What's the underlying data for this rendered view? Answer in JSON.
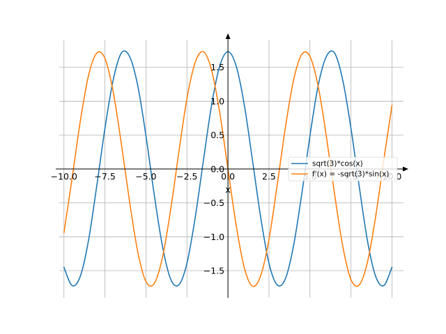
{
  "chart_data": {
    "type": "line",
    "title": "",
    "xlabel": "x",
    "ylabel": "",
    "xlim": [
      -10.5,
      11.0
    ],
    "ylim": [
      -1.9,
      2.0
    ],
    "grid": true,
    "legend_position": "center-right",
    "x_ticks": [
      -10.0,
      -7.5,
      -5.0,
      -2.5,
      0.0,
      2.5,
      5.0,
      7.5,
      10.0
    ],
    "x_tick_labels": [
      "−10.0",
      "−7.5",
      "−5.0",
      "−2.5",
      "0.0",
      "2.5",
      "5.0",
      "7.5",
      "10.0"
    ],
    "y_ticks": [
      -1.5,
      -1.0,
      -0.5,
      0.0,
      0.5,
      1.0,
      1.5
    ],
    "y_tick_labels": [
      "−1.5",
      "−1.0",
      "−0.5",
      "0.0",
      "0.5",
      "1.0",
      "1.5"
    ],
    "series": [
      {
        "name": "sqrt(3)*cos(x)",
        "color": "#1f77b4",
        "x": [
          -10,
          -9.5,
          -9,
          -8.5,
          -8,
          -7.5,
          -7,
          -6.5,
          -6,
          -5.5,
          -5,
          -4.5,
          -4,
          -3.5,
          -3,
          -2.5,
          -2,
          -1.5,
          -1,
          -0.5,
          0,
          0.5,
          1,
          1.5,
          2,
          2.5,
          3,
          3.5,
          4,
          4.5,
          5,
          5.5,
          6,
          6.5,
          7,
          7.5,
          8,
          8.5,
          9,
          9.5,
          10
        ],
        "y": [
          -1.45,
          -1.72,
          -1.58,
          -1.05,
          -0.25,
          0.6,
          1.31,
          1.71,
          1.66,
          1.23,
          0.49,
          -0.37,
          -1.13,
          -1.62,
          -1.71,
          -1.39,
          -0.72,
          0.12,
          0.94,
          1.52,
          1.73,
          1.52,
          0.94,
          0.12,
          -0.72,
          -1.39,
          -1.71,
          -1.62,
          -1.13,
          -0.37,
          0.49,
          1.23,
          1.66,
          1.71,
          1.31,
          0.6,
          -0.25,
          -1.05,
          -1.58,
          -1.72,
          -1.45
        ]
      },
      {
        "name": "f'(x) = -sqrt(3)*sin(x)",
        "color": "#ff7f0e",
        "x": [
          -10,
          -9.5,
          -9,
          -8.5,
          -8,
          -7.5,
          -7,
          -6.5,
          -6,
          -5.5,
          -5,
          -4.5,
          -4,
          -3.5,
          -3,
          -2.5,
          -2,
          -1.5,
          -1,
          -0.5,
          0,
          0.5,
          1,
          1.5,
          2,
          2.5,
          3,
          3.5,
          4,
          4.5,
          5,
          5.5,
          6,
          6.5,
          7,
          7.5,
          8,
          8.5,
          9,
          9.5,
          10
        ],
        "y": [
          -0.94,
          -0.13,
          0.71,
          1.38,
          1.71,
          1.63,
          1.14,
          0.37,
          -0.48,
          -1.22,
          -1.66,
          -1.69,
          -1.31,
          -0.61,
          0.24,
          1.04,
          1.57,
          1.73,
          1.46,
          0.83,
          0.0,
          -0.83,
          -1.46,
          -1.73,
          -1.57,
          -1.04,
          -0.24,
          0.61,
          1.31,
          1.69,
          1.66,
          1.22,
          0.48,
          -0.37,
          -1.14,
          -1.63,
          -1.71,
          -1.38,
          -0.71,
          0.13,
          0.94
        ]
      }
    ]
  }
}
